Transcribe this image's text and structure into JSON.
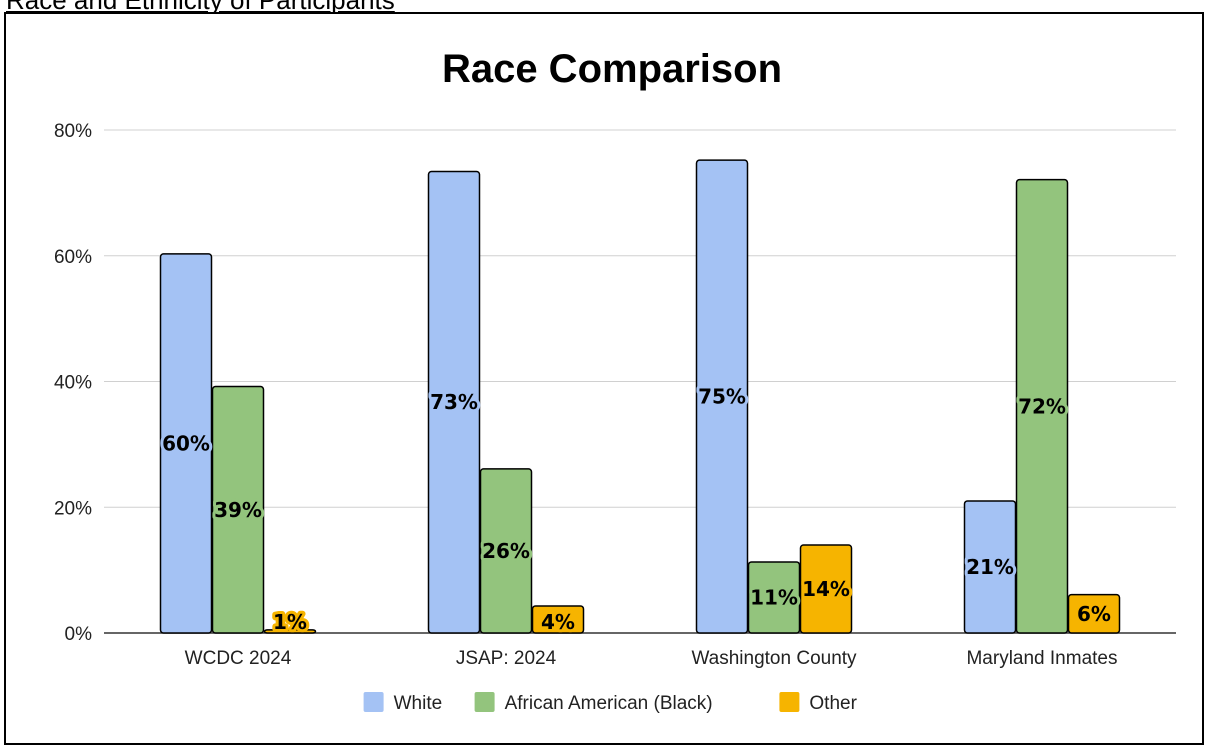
{
  "page": {
    "heading": "Race and Ethnicity of Participants"
  },
  "colors": {
    "White": "#a4c2f4",
    "African American (Black)": "#93c47d",
    "Other": "#f6b400",
    "grid": "#d0d0d0",
    "axis": "#333333"
  },
  "chart_data": {
    "type": "bar",
    "title": "Race Comparison",
    "xlabel": "",
    "ylabel": "",
    "ylim": [
      0,
      80
    ],
    "yticks": [
      "0%",
      "20%",
      "40%",
      "60%",
      "80%"
    ],
    "categories": [
      "WCDC  2024",
      "JSAP: 2024",
      "Washington County",
      "Maryland Inmates"
    ],
    "series": [
      {
        "name": "White",
        "values": [
          60.3,
          73.4,
          75.2,
          21.0
        ],
        "labels": [
          "60%",
          "73%",
          "75%",
          "21%"
        ]
      },
      {
        "name": "African American (Black)",
        "values": [
          39.2,
          26.1,
          11.3,
          72.1
        ],
        "labels": [
          "39%",
          "26%",
          "11%",
          "72%"
        ]
      },
      {
        "name": "Other",
        "values": [
          0.5,
          4.3,
          14.0,
          6.1
        ],
        "labels": [
          "1%",
          "4%",
          "14%",
          "6%"
        ]
      }
    ],
    "grid": true,
    "legend_position": "bottom"
  }
}
